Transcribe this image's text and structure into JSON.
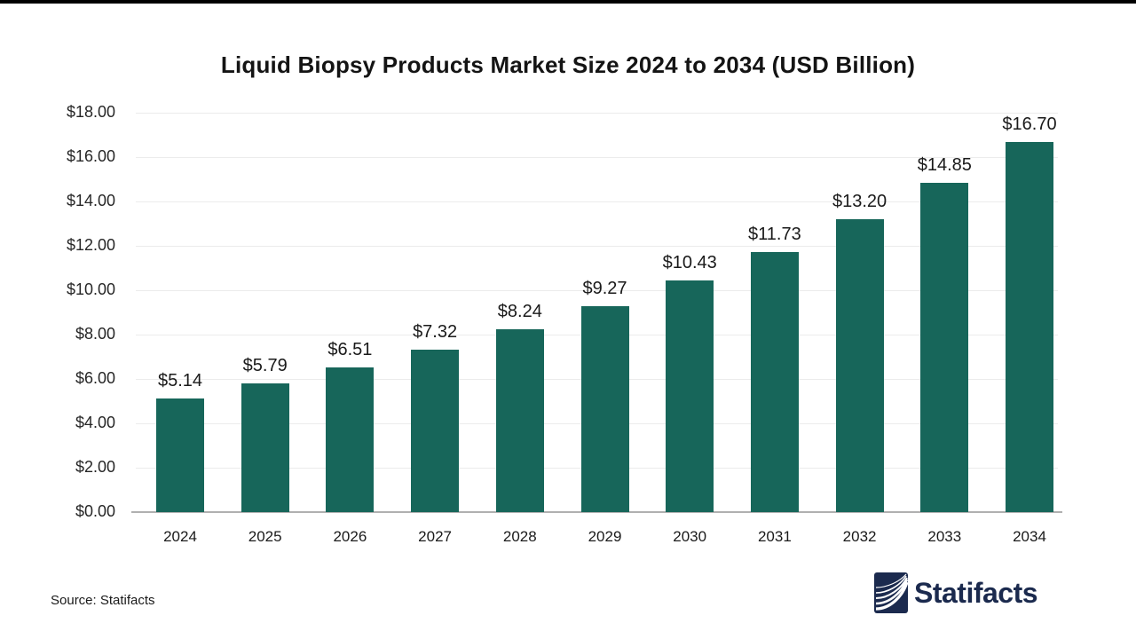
{
  "page": {
    "top_border_color": "#000000"
  },
  "chart_data": {
    "type": "bar",
    "title": "Liquid Biopsy Products Market Size 2024 to 2034 (USD Billion)",
    "categories": [
      "2024",
      "2025",
      "2026",
      "2027",
      "2028",
      "2029",
      "2030",
      "2031",
      "2032",
      "2033",
      "2034"
    ],
    "values": [
      5.14,
      5.79,
      6.51,
      7.32,
      8.24,
      9.27,
      10.43,
      11.73,
      13.2,
      14.85,
      16.7
    ],
    "value_labels": [
      "$5.14",
      "$5.79",
      "$6.51",
      "$7.32",
      "$8.24",
      "$9.27",
      "$10.43",
      "$11.73",
      "$13.20",
      "$14.85",
      "$16.70"
    ],
    "xlabel": "",
    "ylabel": "",
    "ylim": [
      0,
      18
    ],
    "y_tick_step": 2,
    "y_tick_labels": [
      "$18.00",
      "$16.00",
      "$14.00",
      "$12.00",
      "$10.00",
      "$8.00",
      "$6.00",
      "$4.00",
      "$2.00",
      "$0.00"
    ],
    "grid": "horizontal",
    "legend": false,
    "bar_color": "#17665a"
  },
  "footer": {
    "source": "Source: Statifacts",
    "logo_text": "Statifacts",
    "logo_color": "#1b2a4e"
  }
}
